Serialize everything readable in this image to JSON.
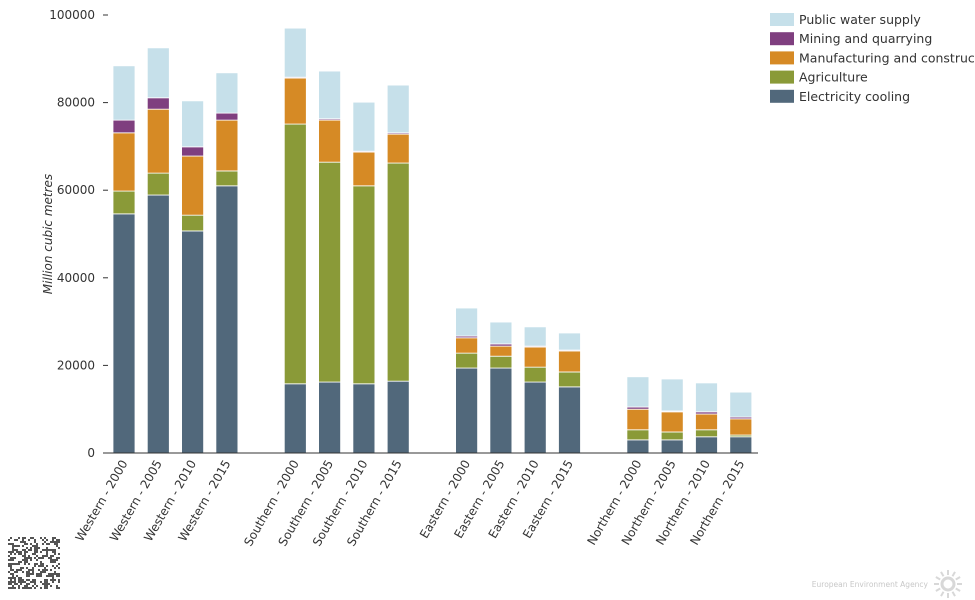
{
  "chart_data": {
    "type": "bar",
    "stacked": true,
    "title": "",
    "xlabel": "",
    "ylabel": "Million cubic metres",
    "ylim": [
      0,
      100000
    ],
    "yticks": [
      0,
      20000,
      40000,
      60000,
      80000,
      100000
    ],
    "grid": false,
    "legend_position": "top-right",
    "groups": [
      "Western",
      "Southern",
      "Eastern",
      "Northern"
    ],
    "categories": [
      "Western - 2000",
      "Western - 2005",
      "Western - 2010",
      "Western - 2015",
      "Southern - 2000",
      "Southern - 2005",
      "Southern - 2010",
      "Southern - 2015",
      "Eastern - 2000",
      "Eastern - 2005",
      "Eastern - 2010",
      "Eastern - 2015",
      "Northern - 2000",
      "Northern - 2005",
      "Northern - 2010",
      "Northern - 2015"
    ],
    "series": [
      {
        "name": "Electricity cooling",
        "color": "#51687b",
        "values": [
          54600,
          58900,
          50700,
          61000,
          15800,
          16200,
          15800,
          16400,
          19400,
          19400,
          16200,
          15100,
          3000,
          3000,
          3700,
          3700
        ]
      },
      {
        "name": "Agriculture",
        "color": "#8a9a38",
        "values": [
          5200,
          5000,
          3600,
          3400,
          59300,
          50200,
          45200,
          49800,
          3400,
          2700,
          3400,
          3400,
          2300,
          1800,
          1600,
          400
        ]
      },
      {
        "name": "Manufacturing and construction",
        "color": "#d68a25",
        "values": [
          13300,
          14600,
          13500,
          11600,
          10500,
          9600,
          7700,
          6600,
          3500,
          2300,
          4600,
          4800,
          4700,
          4600,
          3600,
          3700
        ]
      },
      {
        "name": "Mining and quarrying",
        "color": "#7f3f7f",
        "values": [
          2900,
          2600,
          2100,
          1600,
          200,
          300,
          200,
          300,
          400,
          500,
          200,
          200,
          500,
          200,
          500,
          400
        ]
      },
      {
        "name": "Public water supply",
        "color": "#c6e0ea",
        "values": [
          12400,
          11400,
          10500,
          9200,
          11200,
          10900,
          11200,
          10900,
          6400,
          5000,
          4400,
          3900,
          6900,
          7300,
          6600,
          5700
        ]
      }
    ]
  },
  "footer": {
    "logo_text": "European Environment Agency"
  }
}
